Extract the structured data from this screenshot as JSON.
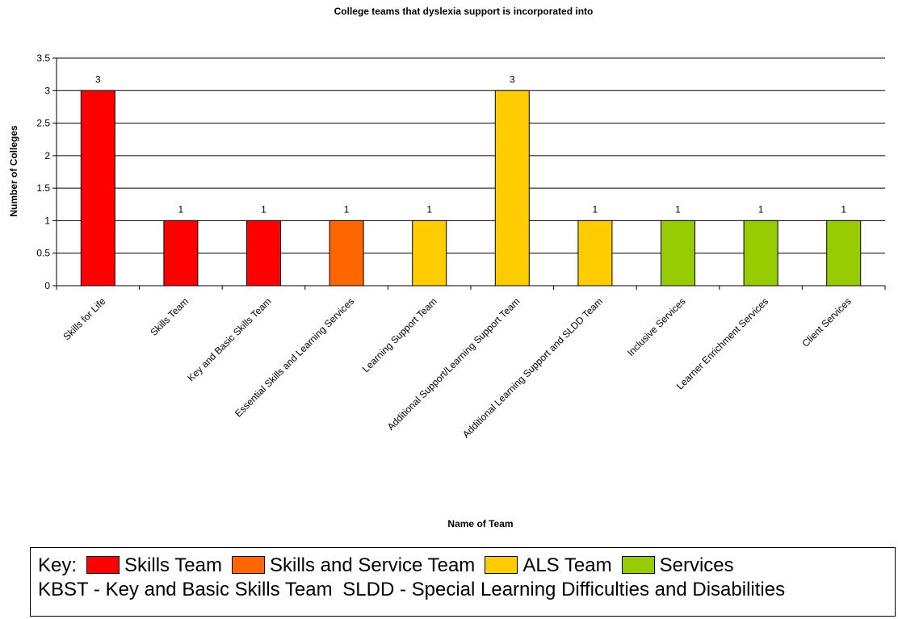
{
  "chart_data": {
    "type": "bar",
    "title": "College teams that dyslexia support is incorporated into",
    "xlabel": "Name of Team",
    "ylabel": "Number of Colleges",
    "ylim": [
      0,
      3.5
    ],
    "yticks": [
      "0",
      "0.5",
      "1",
      "1.5",
      "2",
      "2.5",
      "3",
      "3.5"
    ],
    "grid": true,
    "legend": "bottom",
    "categories": [
      "Skills for Life",
      "Skills Team",
      "Key and Basic Skills Team",
      "Essential Skills and Learning Services",
      "Learning Support Team",
      "Additional Support/Learning Support Team",
      "Additional Learning Support and SLDD Team",
      "Inclusive Services",
      "Learner Enrichment Services",
      "Client Services"
    ],
    "values": [
      3,
      1,
      1,
      1,
      1,
      3,
      1,
      1,
      1,
      1
    ],
    "data_labels": [
      "3",
      "1",
      "1",
      "1",
      "1",
      "3",
      "1",
      "1",
      "1",
      "1"
    ],
    "bar_groups": [
      "skills",
      "skills",
      "skills",
      "service",
      "als",
      "als",
      "als",
      "services",
      "services",
      "services"
    ]
  },
  "colors": {
    "skills": "#ff0000",
    "service": "#ff6600",
    "als": "#ffcc00",
    "services": "#99cc00"
  },
  "key": {
    "label": "Key:",
    "items": [
      {
        "label": "Skills Team",
        "color": "#ff0000"
      },
      {
        "label": "Skills and Service Team",
        "color": "#ff6600"
      },
      {
        "label": "ALS Team",
        "color": "#ffcc00"
      },
      {
        "label": "Services",
        "color": "#99cc00"
      }
    ],
    "note1": "KBST - Key and Basic Skills Team",
    "note2": "SLDD - Special Learning Difficulties and Disabilities"
  }
}
